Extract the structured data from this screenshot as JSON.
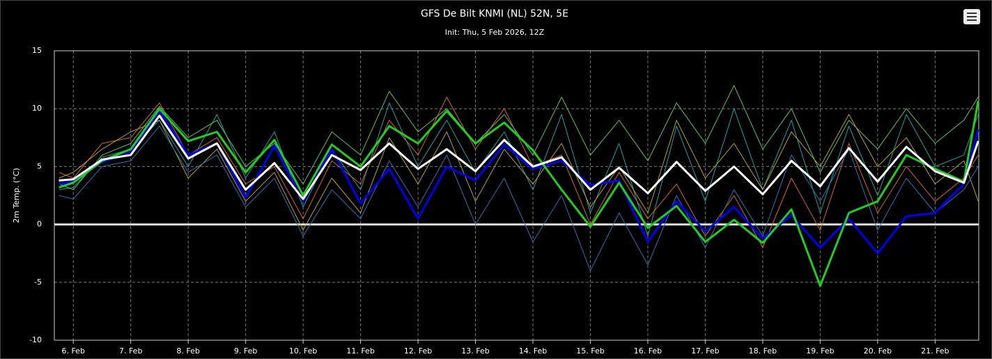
{
  "chart_data": {
    "type": "line",
    "title": "GFS De Bilt KNMI (NL) 52N, 5E",
    "subtitle": "Init: Thu, 5 Feb 2026, 12Z",
    "y_label": "2m Temp. (°C)",
    "grid": true,
    "xlim": [
      5.67,
      21.76
    ],
    "xticks": [
      {
        "value": 6,
        "label": "6. Feb"
      },
      {
        "value": 7,
        "label": "7. Feb"
      },
      {
        "value": 8,
        "label": "8. Feb"
      },
      {
        "value": 9,
        "label": "9. Feb"
      },
      {
        "value": 10,
        "label": "10. Feb"
      },
      {
        "value": 11,
        "label": "11. Feb"
      },
      {
        "value": 12,
        "label": "12. Feb"
      },
      {
        "value": 13,
        "label": "13. Feb"
      },
      {
        "value": 14,
        "label": "14. Feb"
      },
      {
        "value": 15,
        "label": "15. Feb"
      },
      {
        "value": 16,
        "label": "16. Feb"
      },
      {
        "value": 17,
        "label": "17. Feb"
      },
      {
        "value": 18,
        "label": "18. Feb"
      },
      {
        "value": 19,
        "label": "19. Feb"
      },
      {
        "value": 20,
        "label": "20. Feb"
      },
      {
        "value": 21,
        "label": "21. Feb"
      }
    ],
    "ylim": [
      -10,
      15
    ],
    "yticks": [
      -10,
      -5,
      0,
      5,
      10,
      15
    ],
    "x": [
      5.75,
      6,
      6.5,
      7,
      7.5,
      8,
      8.5,
      9,
      9.5,
      10,
      10.5,
      11,
      11.5,
      12,
      12.5,
      13,
      13.5,
      14,
      14.5,
      15,
      15.5,
      16,
      16.5,
      17,
      17.5,
      18,
      18.5,
      19,
      19.5,
      20,
      20.5,
      21,
      21.5,
      21.75
    ],
    "series": [
      {
        "color": "#20a0a0",
        "width": 1,
        "values": [
          3.0,
          3.2,
          5.8,
          6.5,
          9.0,
          5.0,
          9.5,
          4.0,
          8.0,
          1.5,
          6.5,
          3.0,
          10.5,
          5.0,
          9.0,
          4.5,
          8.0,
          3.0,
          9.5,
          1.0,
          7.0,
          -1.0,
          8.5,
          2.0,
          10.0,
          3.0,
          9.0,
          1.0,
          8.5,
          2.5,
          9.5,
          5.0,
          6.0,
          9.5
        ]
      },
      {
        "color": "#d2691e",
        "width": 1,
        "values": [
          4.5,
          4.0,
          7.0,
          7.5,
          10.5,
          6.0,
          7.5,
          3.5,
          5.0,
          0.5,
          5.5,
          3.5,
          9.0,
          6.0,
          11.0,
          6.5,
          10.0,
          5.0,
          6.0,
          0.0,
          4.5,
          0.5,
          3.5,
          -1.0,
          2.5,
          -2.0,
          4.0,
          -0.5,
          7.0,
          1.0,
          5.0,
          2.0,
          4.0,
          6.0
        ]
      },
      {
        "color": "#b8a030",
        "width": 1,
        "values": [
          4.0,
          4.5,
          6.5,
          8.0,
          9.0,
          4.0,
          6.5,
          2.0,
          4.5,
          -0.5,
          4.0,
          1.0,
          7.5,
          3.5,
          8.0,
          2.0,
          6.5,
          3.5,
          7.0,
          1.5,
          5.0,
          1.0,
          9.0,
          4.0,
          7.0,
          3.0,
          8.0,
          5.0,
          9.5,
          5.0,
          7.5,
          3.5,
          5.5,
          2.0
        ]
      },
      {
        "color": "#60c060",
        "width": 1,
        "values": [
          3.5,
          3.0,
          6.0,
          7.0,
          10.2,
          7.5,
          9.0,
          5.0,
          7.0,
          3.5,
          8.0,
          6.0,
          11.5,
          8.0,
          10.0,
          7.0,
          9.5,
          6.0,
          11.0,
          6.0,
          9.0,
          5.5,
          10.5,
          7.0,
          12.0,
          6.5,
          10.0,
          4.5,
          9.0,
          6.5,
          10.0,
          7.0,
          9.0,
          11.0
        ]
      },
      {
        "color": "#3070b0",
        "width": 1,
        "values": [
          2.5,
          2.2,
          5.0,
          5.5,
          8.5,
          4.5,
          6.0,
          1.5,
          4.0,
          -1.0,
          3.0,
          0.5,
          5.5,
          1.5,
          6.0,
          0.0,
          4.0,
          -1.5,
          2.5,
          -4.0,
          1.0,
          -3.5,
          2.5,
          -2.0,
          3.0,
          -1.0,
          6.0,
          2.0,
          6.5,
          -0.5,
          4.0,
          1.0,
          3.0,
          5.0
        ]
      },
      {
        "color": "#0000ee",
        "width": 3,
        "values": [
          3.5,
          3.7,
          5.4,
          6.2,
          9.8,
          6.0,
          7.0,
          2.3,
          6.8,
          2.0,
          6.5,
          1.8,
          4.8,
          0.5,
          5.0,
          3.8,
          6.9,
          4.8,
          5.5,
          3.4,
          3.8,
          -1.5,
          2.0,
          -0.6,
          1.5,
          -1.2,
          0.8,
          -2.0,
          0.5,
          -2.5,
          0.7,
          1.0,
          3.5,
          8.2
        ]
      },
      {
        "color": "#22cc22",
        "width": 3,
        "values": [
          3.2,
          3.6,
          5.5,
          6.5,
          10.0,
          7.2,
          8.0,
          4.5,
          7.3,
          2.5,
          6.9,
          5.0,
          8.5,
          7.0,
          9.8,
          7.0,
          8.8,
          6.4,
          3.0,
          -0.2,
          3.6,
          -0.3,
          1.6,
          -1.5,
          0.4,
          -1.6,
          1.3,
          -5.3,
          1.0,
          2.0,
          6.0,
          4.8,
          3.7,
          10.7
        ]
      },
      {
        "color": "#ffffff",
        "width": 3,
        "values": [
          3.8,
          3.9,
          5.6,
          6.0,
          9.4,
          5.7,
          7.0,
          3.0,
          5.3,
          2.2,
          6.0,
          4.7,
          7.0,
          4.8,
          6.5,
          4.6,
          7.3,
          5.0,
          5.8,
          3.0,
          4.9,
          2.7,
          5.4,
          2.9,
          5.0,
          2.6,
          5.5,
          3.3,
          6.6,
          3.7,
          6.7,
          4.6,
          3.6,
          7.2
        ]
      }
    ]
  }
}
